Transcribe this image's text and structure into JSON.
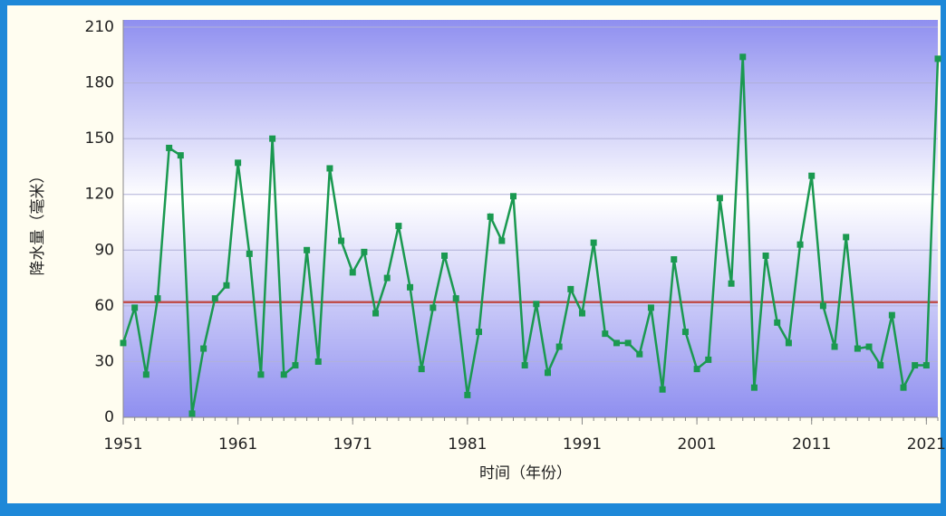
{
  "chart_data": {
    "type": "line",
    "y_label": "降水量（毫米）",
    "x_label": "时间（年份）",
    "x": [
      1951,
      1952,
      1953,
      1954,
      1955,
      1956,
      1957,
      1958,
      1959,
      1960,
      1961,
      1962,
      1963,
      1964,
      1965,
      1966,
      1967,
      1968,
      1969,
      1970,
      1971,
      1972,
      1973,
      1974,
      1975,
      1976,
      1977,
      1978,
      1979,
      1980,
      1981,
      1982,
      1983,
      1984,
      1985,
      1986,
      1987,
      1988,
      1989,
      1990,
      1991,
      1992,
      1993,
      1994,
      1995,
      1996,
      1997,
      1998,
      1999,
      2000,
      2001,
      2002,
      2003,
      2004,
      2005,
      2006,
      2007,
      2008,
      2009,
      2010,
      2011,
      2012,
      2013,
      2014,
      2015,
      2016,
      2017,
      2018,
      2019,
      2020,
      2021,
      2022
    ],
    "series": [
      {
        "name": "降水量",
        "color": "#1a9950",
        "values": [
          40,
          59,
          23,
          64,
          145,
          141,
          2,
          37,
          64,
          71,
          137,
          88,
          23,
          150,
          23,
          28,
          90,
          30,
          134,
          95,
          78,
          89,
          56,
          75,
          103,
          70,
          26,
          59,
          87,
          64,
          12,
          46,
          108,
          95,
          119,
          28,
          61,
          24,
          38,
          69,
          56,
          94,
          45,
          40,
          40,
          34,
          59,
          15,
          85,
          46,
          26,
          31,
          118,
          72,
          194,
          16,
          87,
          51,
          40,
          93,
          130,
          60,
          38,
          97,
          37,
          38,
          28,
          55,
          16,
          28,
          28,
          193
        ]
      }
    ],
    "reference_line": {
      "value": 62,
      "color": "#c0504d"
    },
    "xlim": [
      1951,
      2022
    ],
    "xticks": [
      1951,
      1961,
      1971,
      1981,
      1991,
      2001,
      2011,
      2021
    ],
    "ylim": [
      0,
      210
    ],
    "yticks": [
      0,
      30,
      60,
      90,
      120,
      150,
      180,
      210
    ],
    "grid": true
  }
}
